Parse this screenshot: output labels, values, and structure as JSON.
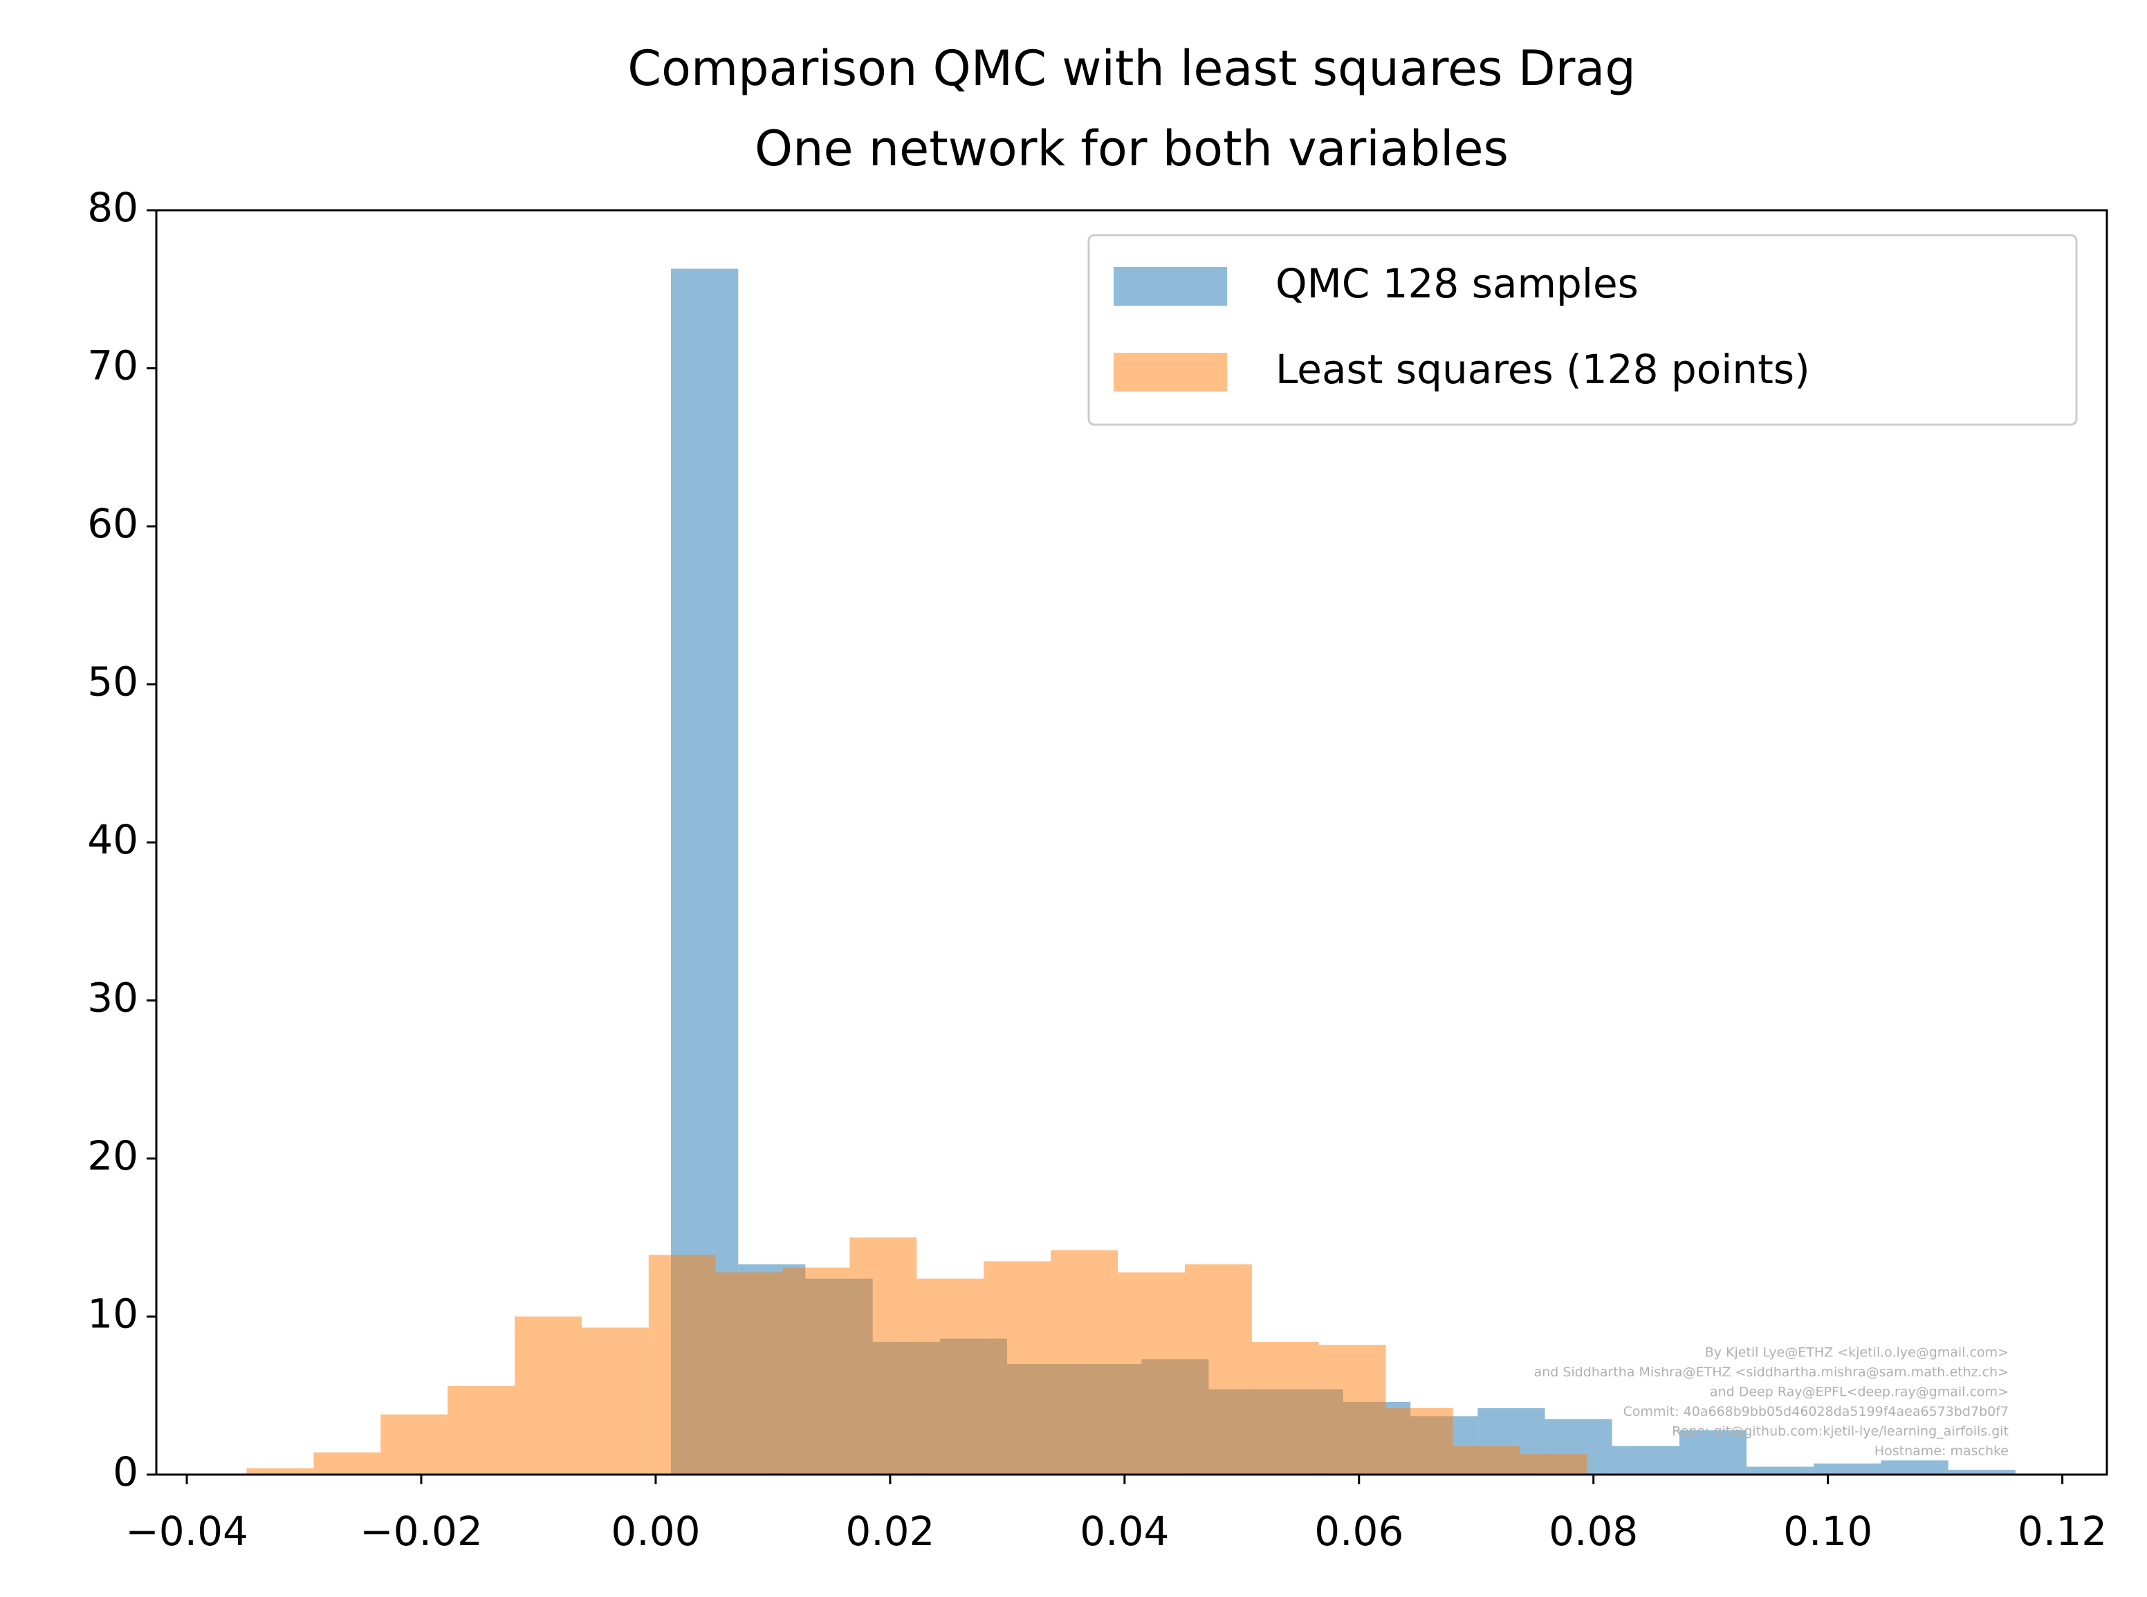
{
  "chart_data": {
    "type": "histogram",
    "title": [
      "Comparison QMC with least squares Drag",
      "One network for both variables"
    ],
    "series": [
      {
        "name": "QMC 128 samples",
        "color": "#1f77b4",
        "bins": [
          0.0013,
          0.00704,
          0.01277,
          0.01851,
          0.02424,
          0.02998,
          0.03571,
          0.04145,
          0.04718,
          0.05292,
          0.05865,
          0.06439,
          0.07012,
          0.07586,
          0.08159,
          0.08733,
          0.09306,
          0.0988,
          0.10453,
          0.11027,
          0.116
        ],
        "values": [
          76.3,
          13.3,
          12.4,
          8.4,
          8.6,
          7.0,
          7.0,
          7.3,
          5.4,
          5.4,
          4.6,
          3.7,
          4.2,
          3.5,
          1.8,
          2.8,
          0.5,
          0.7,
          0.9,
          0.3
        ]
      },
      {
        "name": "Least squares (128 points)",
        "color": "#ff7f0e",
        "bins": [
          -0.0349,
          -0.02918,
          -0.02347,
          -0.01775,
          -0.01203,
          -0.00632,
          -0.0006,
          0.00512,
          0.01084,
          0.01655,
          0.02227,
          0.02799,
          0.0337,
          0.03942,
          0.04514,
          0.05086,
          0.05657,
          0.06229,
          0.06801,
          0.07372,
          0.07944
        ],
        "values": [
          0.4,
          1.4,
          3.8,
          5.6,
          10.0,
          9.3,
          13.9,
          12.8,
          13.1,
          15.0,
          12.4,
          13.5,
          14.2,
          12.8,
          13.3,
          8.4,
          8.2,
          4.2,
          1.8,
          1.3
        ]
      }
    ],
    "alpha": 0.5,
    "xlim": [
      -0.0426,
      0.1238
    ],
    "ylim": [
      0,
      80
    ],
    "xticks": [
      {
        "value": -0.04,
        "label": "−0.04"
      },
      {
        "value": -0.02,
        "label": "−0.02"
      },
      {
        "value": 0,
        "label": "0.00"
      },
      0.02,
      0.04,
      0.06,
      0.08,
      {
        "value": 0.1,
        "label": "0.10"
      },
      0.12
    ],
    "yticks": [
      0,
      10,
      20,
      30,
      40,
      50,
      60,
      70,
      80
    ],
    "grid": false,
    "legend": "upper right",
    "annotations": [
      "By Kjetil Lye@ETHZ <kjetil.o.lye@gmail.com>",
      "and Siddhartha Mishra@ETHZ <siddhartha.mishra@sam.math.ethz.ch>",
      "and Deep Ray@EPFL<deep.ray@gmail.com>",
      "Commit: 40a668b9bb05d46028da5199f4aea6573bd7b0f7",
      "Repo: git@github.com:kjetil-lye/learning_airfoils.git",
      "Hostname: maschke"
    ]
  }
}
